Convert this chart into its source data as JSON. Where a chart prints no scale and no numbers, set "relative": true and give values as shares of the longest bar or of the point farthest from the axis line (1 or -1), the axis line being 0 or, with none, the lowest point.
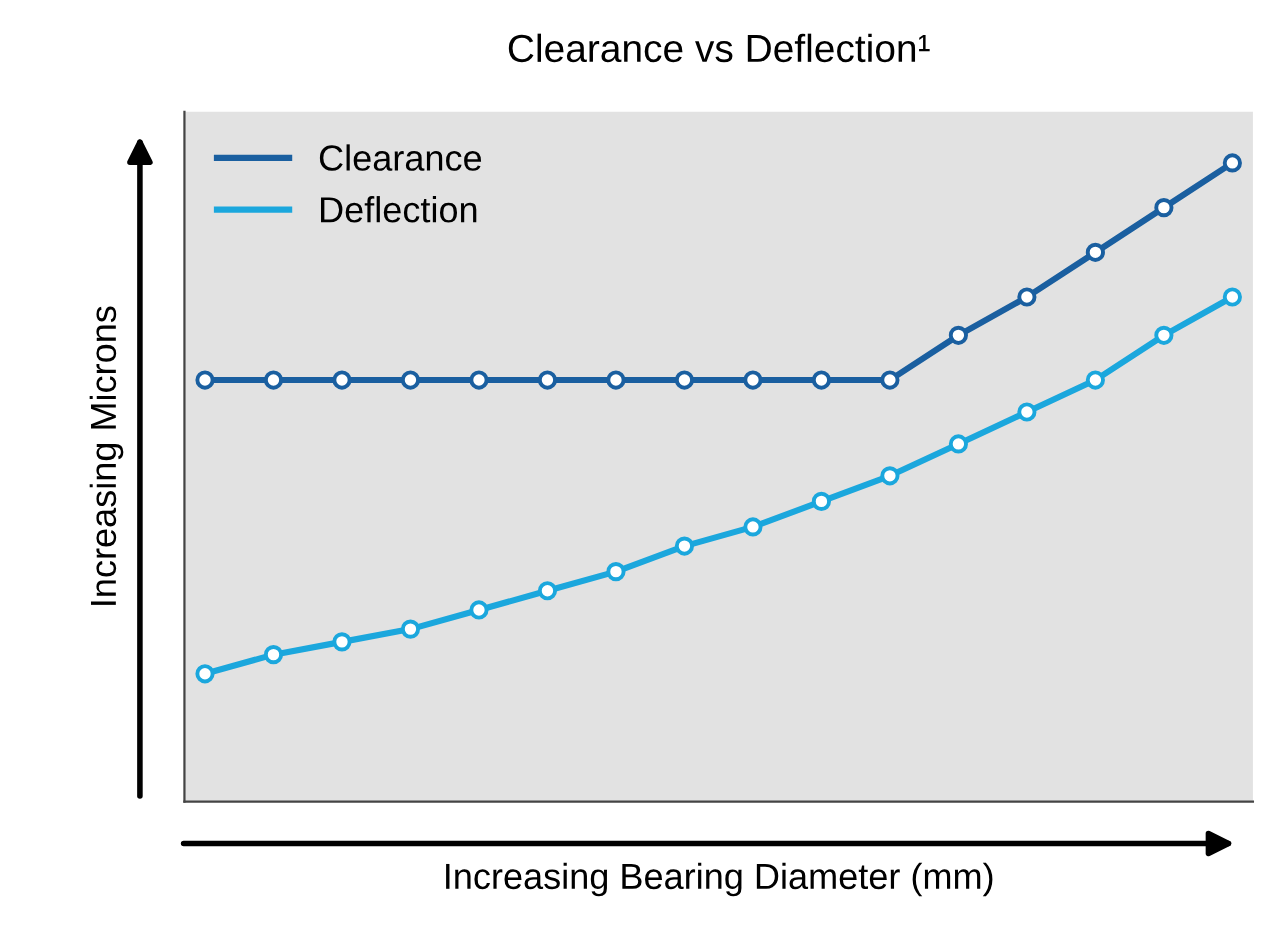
{
  "chart_data": {
    "type": "line",
    "title": "Clearance vs Deflection¹",
    "xlabel": "Increasing Bearing Diameter (mm)",
    "ylabel": "Increasing Microns",
    "relative": true,
    "categories": [
      null,
      null,
      null,
      null,
      null,
      null,
      null,
      null,
      null,
      null,
      null,
      null,
      null,
      null,
      null,
      null
    ],
    "series": [
      {
        "name": "Clearance",
        "color": "#1a5fa0",
        "values": [
          0.66,
          0.66,
          0.66,
          0.66,
          0.66,
          0.66,
          0.66,
          0.66,
          0.66,
          0.66,
          0.66,
          0.73,
          0.79,
          0.86,
          0.93,
          1
        ]
      },
      {
        "name": "Deflection",
        "color": "#1ba7dd",
        "values": [
          0.2,
          0.23,
          0.25,
          0.27,
          0.3,
          0.33,
          0.36,
          0.4,
          0.43,
          0.47,
          0.51,
          0.56,
          0.61,
          0.66,
          0.73,
          0.79
        ]
      }
    ],
    "legend": "top left",
    "marker": "circle",
    "line_style": "solid",
    "tick_labels": false
  }
}
